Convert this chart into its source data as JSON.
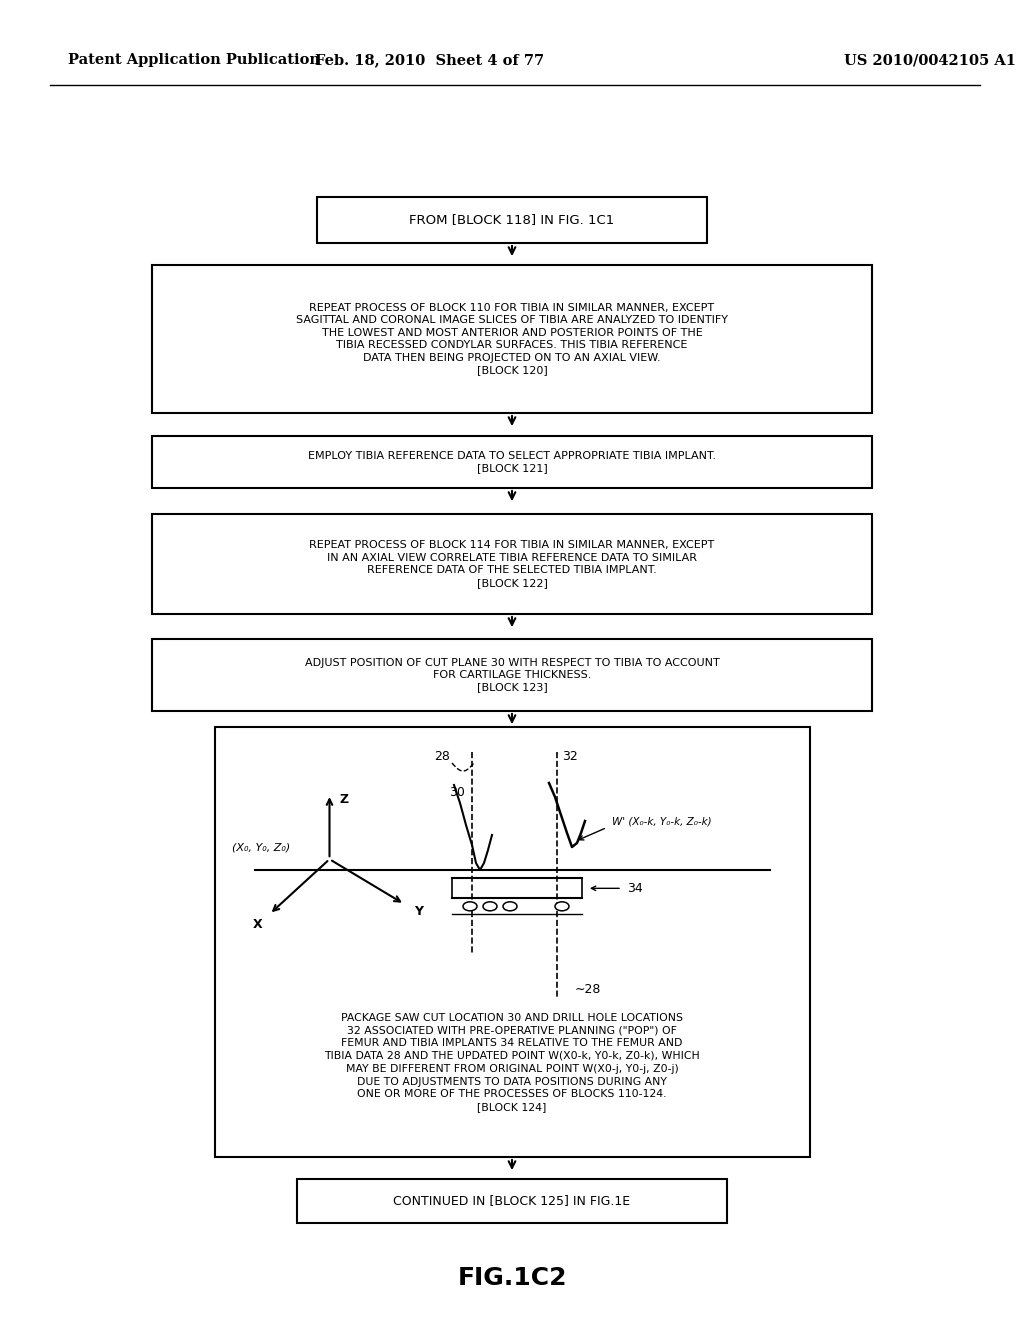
{
  "bg_color": "#ffffff",
  "header_left": "Patent Application Publication",
  "header_mid": "Feb. 18, 2010  Sheet 4 of 77",
  "header_right": "US 2010/0042105 A1",
  "block1_text": "FROM [BLOCK 118] IN FIG. 1C1",
  "block2_text": "REPEAT PROCESS OF BLOCK 110 FOR TIBIA IN SIMILAR MANNER, EXCEPT\nSAGITTAL AND CORONAL IMAGE SLICES OF TIBIA ARE ANALYZED TO IDENTIFY\nTHE LOWEST AND MOST ANTERIOR AND POSTERIOR POINTS OF THE\nTIBIA RECESSED CONDYLAR SURFACES. THIS TIBIA REFERENCE\nDATA THEN BEING PROJECTED ON TO AN AXIAL VIEW.\n[BLOCK 120]",
  "block3_text": "EMPLOY TIBIA REFERENCE DATA TO SELECT APPROPRIATE TIBIA IMPLANT.\n[BLOCK 121]",
  "block4_text": "REPEAT PROCESS OF BLOCK 114 FOR TIBIA IN SIMILAR MANNER, EXCEPT\nIN AN AXIAL VIEW CORRELATE TIBIA REFERENCE DATA TO SIMILAR\nREFERENCE DATA OF THE SELECTED TIBIA IMPLANT.\n[BLOCK 122]",
  "block5_text": "ADJUST POSITION OF CUT PLANE 30 WITH RESPECT TO TIBIA TO ACCOUNT\nFOR CARTILAGE THICKNESS.\n[BLOCK 123]",
  "block6_caption": "PACKAGE SAW CUT LOCATION 30 AND DRILL HOLE LOCATIONS\n32 ASSOCIATED WITH PRE-OPERATIVE PLANNING (\"POP\") OF\nFEMUR AND TIBIA IMPLANTS 34 RELATIVE TO THE FEMUR AND\nTIBIA DATA 28 AND THE UPDATED POINT W(X0-k, Y0-k, Z0-k), WHICH\nMAY BE DIFFERENT FROM ORIGINAL POINT W(X0-j, Y0-j, Z0-j)\nDUE TO ADJUSTMENTS TO DATA POSITIONS DURING ANY\nONE OR MORE OF THE PROCESSES OF BLOCKS 110-124.\n[BLOCK 124]",
  "block7_text": "CONTINUED IN [BLOCK 125] IN FIG.1E",
  "fig_label": "FIG.1C2",
  "font_size_header": 10.5,
  "font_size_fig": 18
}
